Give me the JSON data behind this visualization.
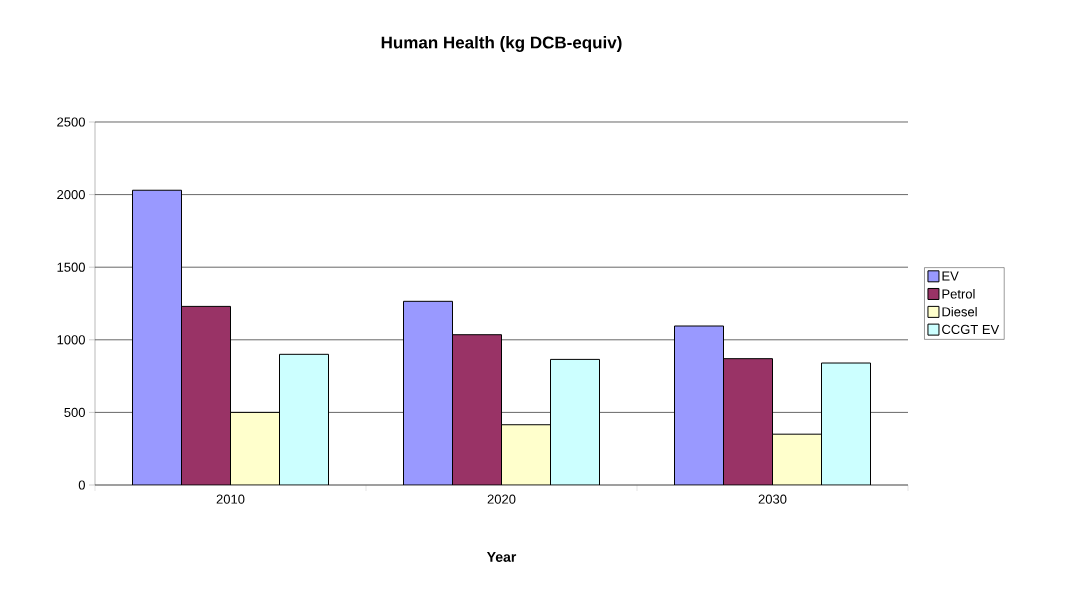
{
  "chart_data": {
    "type": "bar",
    "title": "Human Health (kg DCB-equiv)",
    "xlabel": "Year",
    "categories": [
      "2010",
      "2020",
      "2030"
    ],
    "series": [
      {
        "name": "EV",
        "color": "#9999ff",
        "values": [
          2030,
          1265,
          1095
        ]
      },
      {
        "name": "Petrol",
        "color": "#993366",
        "values": [
          1230,
          1035,
          870
        ]
      },
      {
        "name": "Diesel",
        "color": "#ffffcc",
        "values": [
          500,
          415,
          350
        ]
      },
      {
        "name": "CCGT EV",
        "color": "#ccffff",
        "values": [
          900,
          865,
          840
        ]
      }
    ],
    "ylim": [
      0,
      2500
    ],
    "yticks": [
      0,
      500,
      1000,
      1500,
      2000,
      2500
    ],
    "grid": "y",
    "legend": "right"
  }
}
